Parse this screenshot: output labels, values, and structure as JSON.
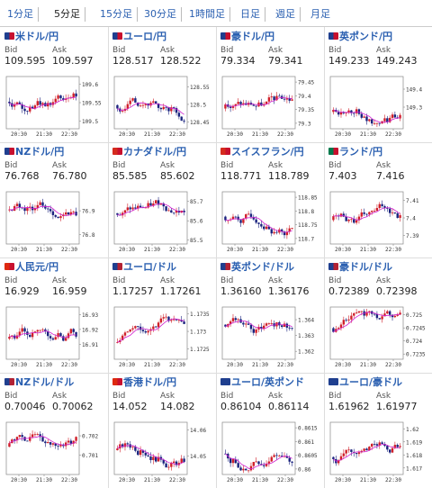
{
  "tabs": [
    {
      "label": "1分足",
      "active": false
    },
    {
      "label": "5分足",
      "active": true
    },
    {
      "label": "15分足",
      "active": false
    },
    {
      "label": "30分足",
      "active": false
    },
    {
      "label": "1時間足",
      "active": false
    },
    {
      "label": "日足",
      "active": false
    },
    {
      "label": "週足",
      "active": false
    },
    {
      "label": "月足",
      "active": false
    }
  ],
  "colors": {
    "link": "#2a5fb0",
    "candle_up": "#d0202a",
    "candle_down": "#1a237e",
    "moving_average": "#d020d0"
  },
  "pairs": [
    {
      "name": "米ドル/円",
      "flag_colors": [
        "#1f3f8f",
        "#c8102e"
      ],
      "bid": "109.595",
      "ask": "109.597",
      "chart_data": {
        "type": "candlestick",
        "x_ticks": [
          "20:30",
          "21:30",
          "22:30"
        ],
        "y_ticks": [
          "109.6",
          "109.55",
          "109.5"
        ],
        "ylim": [
          109.48,
          109.62
        ]
      }
    },
    {
      "name": "ユーロ/円",
      "flag_colors": [
        "#1f3f8f",
        "#c8102e"
      ],
      "bid": "128.517",
      "ask": "128.522",
      "chart_data": {
        "type": "candlestick",
        "x_ticks": [
          "20:30",
          "21:30",
          "22:30"
        ],
        "y_ticks": [
          "128.55",
          "128.5",
          "128.45"
        ],
        "ylim": [
          128.43,
          128.58
        ]
      }
    },
    {
      "name": "豪ドル/円",
      "flag_colors": [
        "#1f3f8f",
        "#c8102e"
      ],
      "bid": "79.334",
      "ask": "79.341",
      "chart_data": {
        "type": "candlestick",
        "x_ticks": [
          "20:30",
          "21:30",
          "22:30"
        ],
        "y_ticks": [
          "79.45",
          "79.4",
          "79.35",
          "79.3"
        ],
        "ylim": [
          79.28,
          79.47
        ]
      }
    },
    {
      "name": "英ポンド/円",
      "flag_colors": [
        "#1f3f8f",
        "#c8102e"
      ],
      "bid": "149.233",
      "ask": "149.243",
      "chart_data": {
        "type": "candlestick",
        "x_ticks": [
          "20:30",
          "21:30",
          "22:30"
        ],
        "y_ticks": [
          "149.4",
          "149.3"
        ],
        "ylim": [
          149.18,
          149.47
        ]
      }
    },
    {
      "name": "NZドル/円",
      "flag_colors": [
        "#1f3f8f",
        "#c8102e"
      ],
      "bid": "76.768",
      "ask": "76.780",
      "chart_data": {
        "type": "candlestick",
        "x_ticks": [
          "20:30",
          "21:30",
          "22:30"
        ],
        "y_ticks": [
          "76.9",
          "76.8"
        ],
        "ylim": [
          76.76,
          76.98
        ]
      }
    },
    {
      "name": "カナダドル/円",
      "flag_colors": [
        "#d52b1e",
        "#c8102e"
      ],
      "bid": "85.585",
      "ask": "85.602",
      "chart_data": {
        "type": "candlestick",
        "x_ticks": [
          "20:30",
          "21:30",
          "22:30"
        ],
        "y_ticks": [
          "85.7",
          "85.6",
          "85.5"
        ],
        "ylim": [
          85.48,
          85.75
        ]
      }
    },
    {
      "name": "スイスフラン/円",
      "flag_colors": [
        "#d52b1e",
        "#c8102e"
      ],
      "bid": "118.771",
      "ask": "118.789",
      "chart_data": {
        "type": "candlestick",
        "x_ticks": [
          "20:30",
          "21:30",
          "22:30"
        ],
        "y_ticks": [
          "118.85",
          "118.8",
          "118.75",
          "118.7"
        ],
        "ylim": [
          118.68,
          118.87
        ]
      }
    },
    {
      "name": "ランド/円",
      "flag_colors": [
        "#007a4d",
        "#c8102e"
      ],
      "bid": "7.403",
      "ask": "7.416",
      "chart_data": {
        "type": "candlestick",
        "x_ticks": [
          "20:30",
          "21:30",
          "22:30"
        ],
        "y_ticks": [
          "7.41",
          "7.4",
          "7.39"
        ],
        "ylim": [
          7.385,
          7.415
        ]
      }
    },
    {
      "name": "人民元/円",
      "flag_colors": [
        "#de2910",
        "#c8102e"
      ],
      "bid": "16.929",
      "ask": "16.959",
      "chart_data": {
        "type": "candlestick",
        "x_ticks": [
          "20:30",
          "21:30",
          "22:30"
        ],
        "y_ticks": [
          "16.93",
          "16.92",
          "16.91"
        ],
        "ylim": [
          16.9,
          16.935
        ]
      }
    },
    {
      "name": "ユーロ/ドル",
      "flag_colors": [
        "#1f3f8f",
        "#b22234"
      ],
      "bid": "1.17257",
      "ask": "1.17261",
      "chart_data": {
        "type": "candlestick",
        "x_ticks": [
          "20:30",
          "21:30",
          "22:30"
        ],
        "y_ticks": [
          "1.1735",
          "1.173",
          "1.1725"
        ],
        "ylim": [
          1.1722,
          1.1737
        ]
      }
    },
    {
      "name": "英ポンド/ドル",
      "flag_colors": [
        "#1f3f8f",
        "#b22234"
      ],
      "bid": "1.36160",
      "ask": "1.36176",
      "chart_data": {
        "type": "candlestick",
        "x_ticks": [
          "20:30",
          "21:30",
          "22:30"
        ],
        "y_ticks": [
          "1.364",
          "1.363",
          "1.362"
        ],
        "ylim": [
          1.3615,
          1.3648
        ]
      }
    },
    {
      "name": "豪ドル/ドル",
      "flag_colors": [
        "#1f3f8f",
        "#b22234"
      ],
      "bid": "0.72389",
      "ask": "0.72398",
      "chart_data": {
        "type": "candlestick",
        "x_ticks": [
          "20:30",
          "21:30",
          "22:30"
        ],
        "y_ticks": [
          "0.725",
          "0.7245",
          "0.724",
          "0.7235"
        ],
        "ylim": [
          0.7233,
          0.7253
        ]
      }
    },
    {
      "name": "NZドル/ドル",
      "flag_colors": [
        "#1f3f8f",
        "#b22234"
      ],
      "bid": "0.70046",
      "ask": "0.70062",
      "chart_data": {
        "type": "candlestick",
        "x_ticks": [
          "20:30",
          "21:30",
          "22:30"
        ],
        "y_ticks": [
          "0.702",
          "0.701"
        ],
        "ylim": [
          0.7,
          0.7027
        ]
      }
    },
    {
      "name": "香港ドル/円",
      "flag_colors": [
        "#de2910",
        "#c8102e"
      ],
      "bid": "14.052",
      "ask": "14.082",
      "chart_data": {
        "type": "candlestick",
        "x_ticks": [
          "20:30",
          "21:30",
          "22:30"
        ],
        "y_ticks": [
          "14.06",
          "14.05"
        ],
        "ylim": [
          14.043,
          14.063
        ]
      }
    },
    {
      "name": "ユーロ/英ポンド",
      "flag_colors": [
        "#1f3f8f",
        "#1f3f8f"
      ],
      "bid": "0.86104",
      "ask": "0.86114",
      "chart_data": {
        "type": "candlestick",
        "x_ticks": [
          "20:30",
          "21:30",
          "22:30"
        ],
        "y_ticks": [
          "0.8615",
          "0.861",
          "0.8605",
          "0.86"
        ],
        "ylim": [
          0.8598,
          0.8617
        ]
      }
    },
    {
      "name": "ユーロ/豪ドル",
      "flag_colors": [
        "#1f3f8f",
        "#1f3f8f"
      ],
      "bid": "1.61962",
      "ask": "1.61977",
      "chart_data": {
        "type": "candlestick",
        "x_ticks": [
          "20:30",
          "21:30",
          "22:30"
        ],
        "y_ticks": [
          "1.62",
          "1.619",
          "1.618",
          "1.617"
        ],
        "ylim": [
          1.6165,
          1.6205
        ]
      }
    }
  ]
}
